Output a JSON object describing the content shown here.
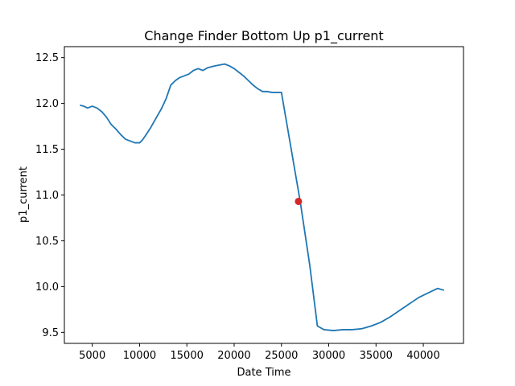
{
  "chart_data": {
    "type": "line",
    "title": "Change Finder Bottom Up p1_current",
    "xlabel": "Date Time",
    "ylabel": "p1_current",
    "xlim": [
      2050,
      44250
    ],
    "ylim": [
      9.38,
      12.62
    ],
    "grid": false,
    "xticks": [
      5000,
      10000,
      15000,
      20000,
      25000,
      30000,
      35000,
      40000
    ],
    "xtick_labels": [
      "5000",
      "10000",
      "15000",
      "20000",
      "25000",
      "30000",
      "35000",
      "40000"
    ],
    "yticks": [
      9.5,
      10.0,
      10.5,
      11.0,
      11.5,
      12.0,
      12.5
    ],
    "ytick_labels": [
      "9.5",
      "10.0",
      "10.5",
      "11.0",
      "11.5",
      "12.0",
      "12.5"
    ],
    "series": [
      {
        "color": "#1f77b4",
        "x": [
          3700,
          4100,
          4500,
          5000,
          5500,
          6000,
          6500,
          7000,
          7500,
          8000,
          8500,
          9000,
          9500,
          10000,
          10300,
          10700,
          11200,
          11800,
          12300,
          12800,
          13300,
          13800,
          14200,
          14700,
          15200,
          15700,
          16200,
          16700,
          17200,
          17600,
          18000,
          18500,
          19000,
          19500,
          20000,
          20500,
          21000,
          21500,
          22000,
          22500,
          23000,
          23500,
          24000,
          24500,
          25000,
          26000,
          27000,
          28000,
          28800,
          29500,
          30500,
          31500,
          32500,
          33500,
          34500,
          35500,
          36500,
          37500,
          38500,
          39500,
          40500,
          41500,
          42200
        ],
        "y": [
          11.98,
          11.97,
          11.95,
          11.97,
          11.95,
          11.91,
          11.85,
          11.77,
          11.72,
          11.66,
          11.61,
          11.59,
          11.57,
          11.57,
          11.6,
          11.66,
          11.74,
          11.85,
          11.94,
          12.05,
          12.2,
          12.25,
          12.28,
          12.3,
          12.32,
          12.36,
          12.38,
          12.36,
          12.39,
          12.4,
          12.41,
          12.42,
          12.43,
          12.41,
          12.38,
          12.34,
          12.3,
          12.25,
          12.2,
          12.16,
          12.13,
          12.13,
          12.12,
          12.12,
          12.12,
          11.52,
          10.92,
          10.23,
          9.57,
          9.53,
          9.52,
          9.53,
          9.53,
          9.54,
          9.57,
          9.61,
          9.67,
          9.74,
          9.81,
          9.88,
          9.93,
          9.98,
          9.96
        ]
      }
    ],
    "highlight_points": [
      {
        "x": 26800,
        "y": 10.93,
        "color": "#d62728"
      }
    ]
  }
}
